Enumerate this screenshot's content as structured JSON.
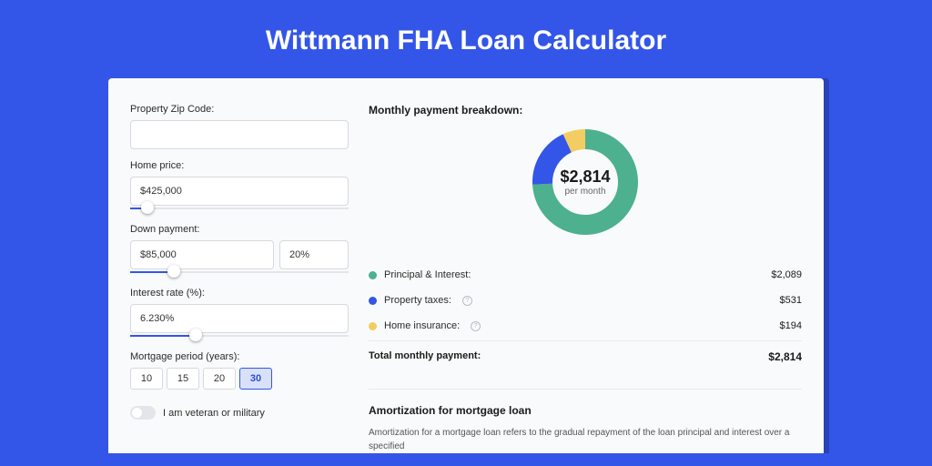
{
  "page": {
    "title": "Wittmann FHA Loan Calculator",
    "background_color": "#3356e8",
    "card_background": "#f9fafb",
    "accent_shadow": "#2842b8"
  },
  "form": {
    "zip": {
      "label": "Property Zip Code:",
      "value": ""
    },
    "home_price": {
      "label": "Home price:",
      "value": "$425,000",
      "slider_fill_pct": 8,
      "thumb_pct": 8
    },
    "down_payment": {
      "label": "Down payment:",
      "value": "$85,000",
      "percent": "20%",
      "slider_fill_pct": 20,
      "thumb_pct": 20
    },
    "interest_rate": {
      "label": "Interest rate (%):",
      "value": "6.230%",
      "slider_fill_pct": 30,
      "thumb_pct": 30
    },
    "mortgage_period": {
      "label": "Mortgage period (years):",
      "options": [
        "10",
        "15",
        "20",
        "30"
      ],
      "selected": "30"
    },
    "veteran": {
      "label": "I am veteran or military",
      "checked": false
    }
  },
  "breakdown": {
    "title": "Monthly payment breakdown:",
    "center_amount": "$2,814",
    "center_sub": "per month",
    "donut": {
      "radius": 58,
      "thickness": 22,
      "segments": [
        {
          "label": "Principal & Interest:",
          "value": "$2,089",
          "numeric": 2089,
          "color": "#4db08e"
        },
        {
          "label": "Property taxes:",
          "value": "$531",
          "numeric": 531,
          "color": "#3356e8",
          "info": true
        },
        {
          "label": "Home insurance:",
          "value": "$194",
          "numeric": 194,
          "color": "#f3cd61",
          "info": true
        }
      ]
    },
    "total": {
      "label": "Total monthly payment:",
      "value": "$2,814"
    }
  },
  "amortization": {
    "title": "Amortization for mortgage loan",
    "text": "Amortization for a mortgage loan refers to the gradual repayment of the loan principal and interest over a specified"
  }
}
